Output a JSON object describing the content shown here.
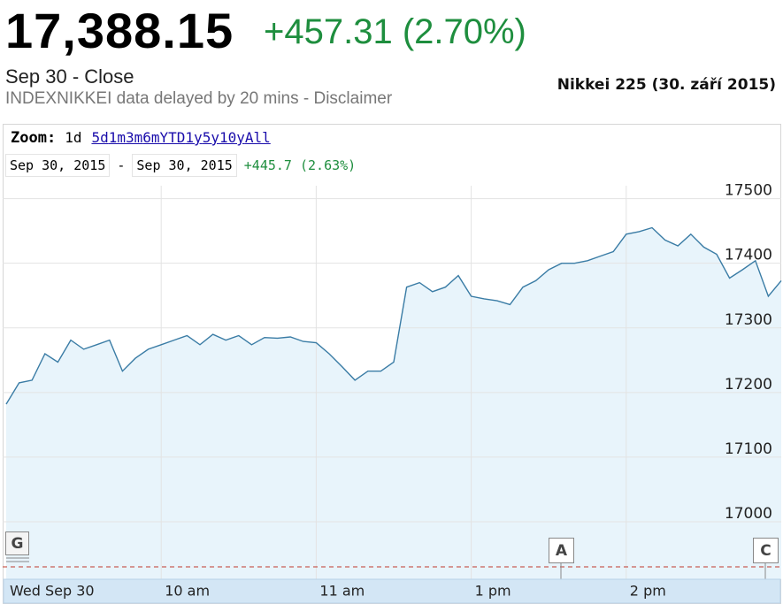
{
  "header": {
    "price": "17,388.15",
    "change": "+457.31 (2.70%)",
    "status": "Sep 30 - Close",
    "note": "INDEXNIKKEI data delayed by 20 mins - Disclaimer",
    "caption": "Nikkei 225 (30. září 2015)"
  },
  "controls": {
    "zoom_label": "Zoom:",
    "zoom": [
      "1d",
      "5d",
      "1m",
      "3m",
      "6m",
      "YTD",
      "1y",
      "5y",
      "10y",
      "All"
    ],
    "from": "Sep 30, 2015",
    "separator": "-",
    "to": "Sep 30, 2015",
    "range_change": "+445.7 (2.63%)"
  },
  "chart_data": {
    "type": "area",
    "color": "#3a7ca5",
    "fill": "#e8f4fb",
    "categories": [
      "Wed Sep 30",
      null,
      null,
      null,
      null,
      null,
      null,
      null,
      null,
      null,
      null,
      null,
      "10 am",
      null,
      null,
      null,
      null,
      null,
      null,
      null,
      null,
      null,
      null,
      null,
      "11 am",
      null,
      null,
      null,
      null,
      null,
      null,
      null,
      null,
      null,
      null,
      null,
      "1 pm",
      null,
      null,
      null,
      null,
      null,
      null,
      null,
      null,
      null,
      null,
      null,
      "2 pm",
      null,
      null,
      null,
      null,
      null,
      null,
      null,
      null,
      null,
      null,
      null,
      null
    ],
    "values": [
      17182,
      17215,
      17219,
      17260,
      17247,
      17281,
      17267,
      17274,
      17281,
      17233,
      17253,
      17267,
      17274,
      17281,
      17288,
      17274,
      17290,
      17281,
      17288,
      17274,
      17285,
      17284,
      17286,
      17279,
      17277,
      17260,
      17240,
      17219,
      17233,
      17233,
      17247,
      17363,
      17370,
      17356,
      17363,
      17381,
      17349,
      17345,
      17342,
      17336,
      17363,
      17373,
      17390,
      17400,
      17400,
      17404,
      17411,
      17418,
      17445,
      17449,
      17455,
      17436,
      17427,
      17445,
      17425,
      17414,
      17377,
      17390,
      17404,
      17349,
      17373
    ],
    "ylim": [
      16911,
      17520
    ],
    "yticks": [
      17000,
      17100,
      17200,
      17300,
      17400,
      17500
    ],
    "grid": true,
    "annotations": [
      "G",
      "A",
      "C"
    ]
  }
}
